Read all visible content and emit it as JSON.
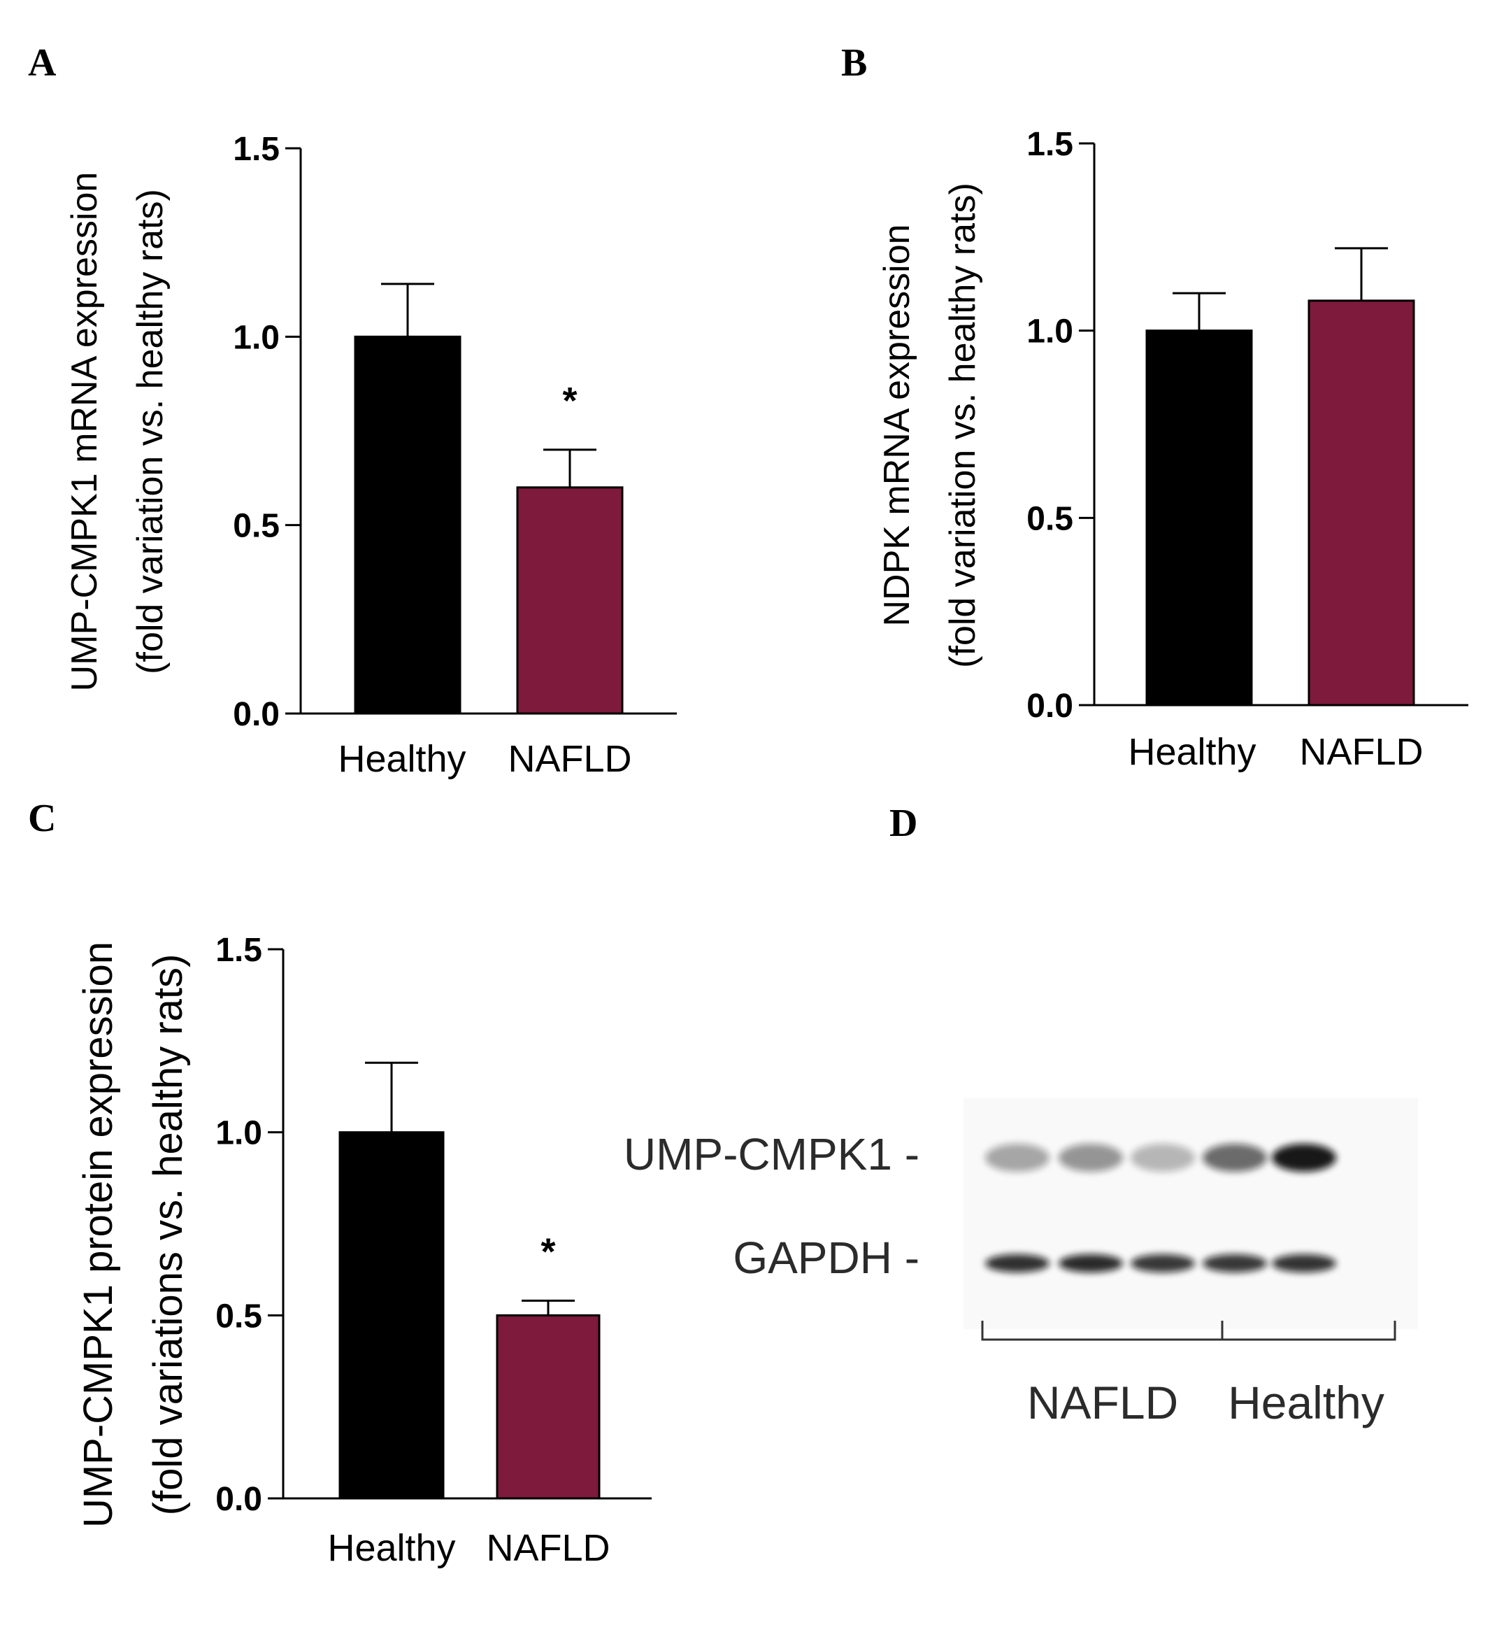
{
  "colors": {
    "healthy": "#000000",
    "nafld": "#7e1a3c",
    "axis": "#000000"
  },
  "chart_data": [
    {
      "panel": "A",
      "type": "bar",
      "categories": [
        "Healthy",
        "NAFLD"
      ],
      "values": [
        1.0,
        0.6
      ],
      "errors": [
        0.14,
        0.1
      ],
      "significance": [
        "",
        "*"
      ],
      "ylabel": [
        "UMP-CMPK1 mRNA expression",
        "(fold variation vs. healthy rats)"
      ],
      "ylim": [
        0,
        1.5
      ],
      "yticks": [
        "0.0",
        "0.5",
        "1.0",
        "1.5"
      ]
    },
    {
      "panel": "B",
      "type": "bar",
      "categories": [
        "Healthy",
        "NAFLD"
      ],
      "values": [
        1.0,
        1.08
      ],
      "errors": [
        0.1,
        0.14
      ],
      "significance": [
        "",
        ""
      ],
      "ylabel": [
        "NDPK mRNA expression",
        "(fold variation vs. healthy rats)"
      ],
      "ylim": [
        0,
        1.5
      ],
      "yticks": [
        "0.0",
        "0.5",
        "1.0",
        "1.5"
      ]
    },
    {
      "panel": "C",
      "type": "bar",
      "categories": [
        "Healthy",
        "NAFLD"
      ],
      "values": [
        1.0,
        0.5
      ],
      "errors": [
        0.19,
        0.04
      ],
      "significance": [
        "",
        "*"
      ],
      "ylabel": [
        "UMP-CMPK1 protein expression",
        "(fold variations vs. healthy rats)"
      ],
      "ylim": [
        0,
        1.5
      ],
      "yticks": [
        "0.0",
        "0.5",
        "1.0",
        "1.5"
      ]
    }
  ],
  "blot": {
    "panel": "D",
    "rows": [
      {
        "label": "UMP-CMPK1 -",
        "intensities": [
          0.35,
          0.42,
          0.28,
          0.6,
          0.95
        ]
      },
      {
        "label": "GAPDH -",
        "intensities": [
          0.85,
          0.88,
          0.82,
          0.82,
          0.84
        ]
      }
    ],
    "groups": [
      "NAFLD",
      "Healthy"
    ]
  }
}
